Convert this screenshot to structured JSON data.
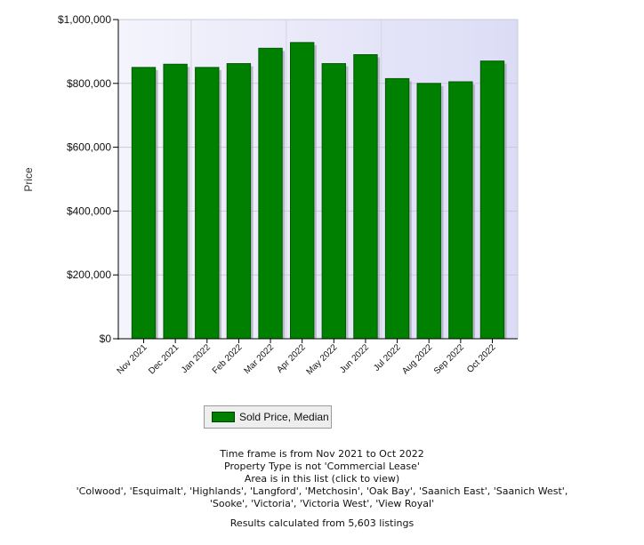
{
  "chart_data": {
    "type": "bar",
    "ylabel": "Price",
    "xlabel": "",
    "title": "",
    "ylim": [
      0,
      1000000
    ],
    "yticks": [
      "$0",
      "$200,000",
      "$400,000",
      "$600,000",
      "$800,000",
      "$1,000,000"
    ],
    "ytick_values": [
      0,
      200000,
      400000,
      600000,
      800000,
      1000000
    ],
    "categories": [
      "Nov 2021",
      "Dec 2021",
      "Jan 2022",
      "Feb 2022",
      "Mar 2022",
      "Apr 2022",
      "May 2022",
      "Jun 2022",
      "Jul 2022",
      "Aug 2022",
      "Sep 2022",
      "Oct 2022"
    ],
    "series": [
      {
        "name": "Sold Price, Median",
        "values": [
          850000,
          860000,
          850000,
          862000,
          910000,
          928000,
          862000,
          890000,
          815000,
          800000,
          805000,
          870000
        ]
      }
    ],
    "grid": true,
    "colors": {
      "bar": "#008000",
      "bar_dark": "#005a00",
      "plot_bg": "#e8e8f8"
    },
    "legend_position": "bottom"
  },
  "notes": {
    "timeframe": "Time frame is from Nov 2021 to Oct 2022",
    "property_type": "Property Type is not 'Commercial Lease'",
    "area_link": "Area is in this list (click to view)",
    "areas_line1": "'Colwood', 'Esquimalt', 'Highlands', 'Langford', 'Metchosin', 'Oak Bay', 'Saanich East', 'Saanich West',",
    "areas_line2": "'Sooke', 'Victoria', 'Victoria West', 'View Royal'",
    "results": "Results calculated from 5,603 listings"
  }
}
